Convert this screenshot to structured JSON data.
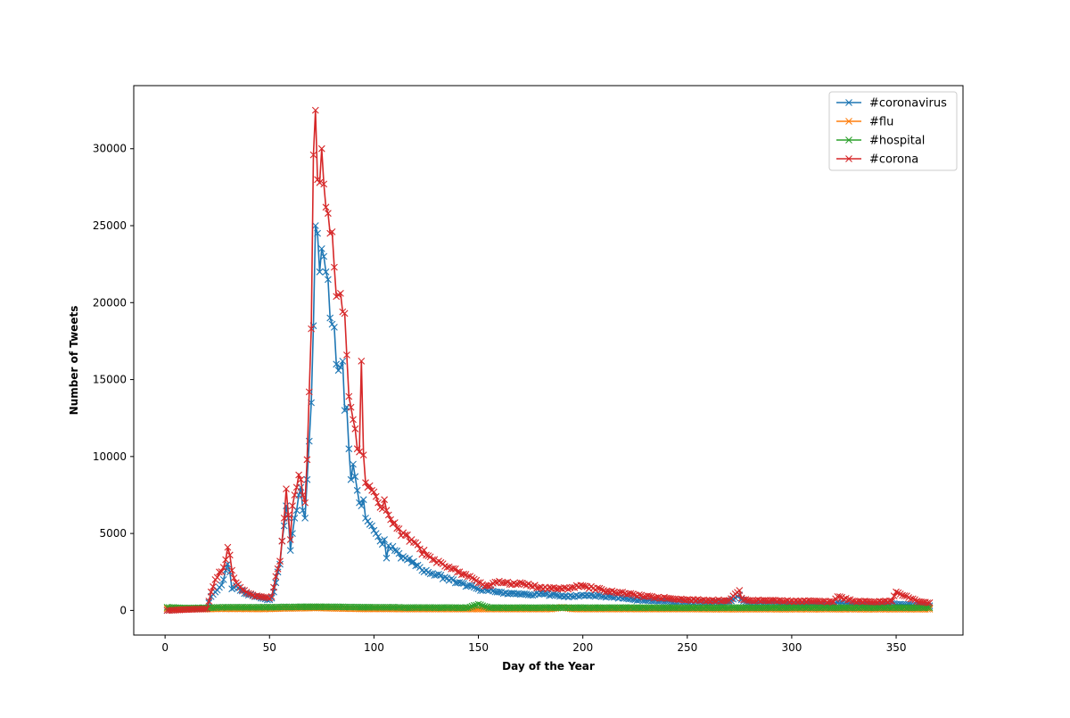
{
  "chart_data": {
    "type": "line",
    "title": "",
    "xlabel": "Day of the Year",
    "ylabel": "Number of Tweets",
    "xlim": [
      -15,
      382
    ],
    "ylim": [
      -1600,
      34100
    ],
    "x_ticks": [
      0,
      50,
      100,
      150,
      200,
      250,
      300,
      350
    ],
    "y_ticks": [
      0,
      5000,
      10000,
      15000,
      20000,
      25000,
      30000
    ],
    "marker": "x",
    "grid": false,
    "legend_position": "top-right",
    "x_key_days": [
      1,
      5,
      10,
      15,
      20,
      21,
      22,
      24,
      26,
      28,
      29,
      30,
      31,
      32,
      34,
      36,
      38,
      40,
      42,
      44,
      46,
      48,
      50,
      51,
      52,
      53,
      54,
      55,
      56,
      57,
      58,
      59,
      60,
      61,
      62,
      63,
      64,
      65,
      66,
      67,
      68,
      69,
      70,
      71,
      72,
      73,
      74,
      75,
      76,
      77,
      78,
      79,
      80,
      81,
      82,
      83,
      84,
      85,
      86,
      87,
      88,
      89,
      90,
      91,
      92,
      93,
      94,
      95,
      96,
      97,
      98,
      99,
      100,
      101,
      102,
      103,
      104,
      105,
      106,
      107,
      108,
      110,
      112,
      115,
      118,
      120,
      122,
      125,
      128,
      130,
      135,
      140,
      145,
      150,
      155,
      160,
      165,
      170,
      175,
      180,
      185,
      190,
      195,
      200,
      205,
      210,
      215,
      220,
      225,
      230,
      240,
      250,
      260,
      270,
      275,
      276,
      277,
      280,
      290,
      300,
      310,
      320,
      322,
      330,
      340,
      348,
      350,
      360,
      366
    ],
    "series": [
      {
        "name": "#coronavirus",
        "color": "#1f77b4",
        "values": [
          0,
          50,
          80,
          100,
          150,
          500,
          900,
          1200,
          1500,
          2000,
          2600,
          3000,
          2500,
          1400,
          1600,
          1300,
          1100,
          1000,
          950,
          900,
          800,
          750,
          700,
          800,
          1200,
          1800,
          2500,
          3000,
          4500,
          5500,
          6800,
          6000,
          3900,
          5000,
          6000,
          6500,
          7500,
          8000,
          6500,
          6000,
          8500,
          11000,
          13500,
          18500,
          25000,
          24500,
          22000,
          23500,
          23000,
          22000,
          21500,
          19000,
          18600,
          18400,
          16000,
          15600,
          15800,
          16200,
          13000,
          13200,
          10500,
          8500,
          9500,
          8700,
          7800,
          7000,
          6800,
          7200,
          6000,
          5800,
          5600,
          5500,
          5200,
          5000,
          4800,
          4500,
          4300,
          4600,
          3400,
          4200,
          4000,
          3900,
          3700,
          3400,
          3100,
          2900,
          2800,
          2600,
          2400,
          2300,
          2100,
          1800,
          1600,
          1400,
          1300,
          1200,
          1100,
          1050,
          1000,
          1100,
          1000,
          950,
          900,
          1000,
          950,
          900,
          850,
          800,
          700,
          650,
          600,
          550,
          500,
          550,
          1000,
          700,
          600,
          500,
          450,
          400,
          400,
          380,
          500,
          380,
          350,
          450,
          400,
          350,
          300
        ]
      },
      {
        "name": "#flu",
        "color": "#ff7f0e",
        "values": [
          120,
          110,
          100,
          100,
          90,
          90,
          90,
          100,
          110,
          110,
          100,
          110,
          100,
          100,
          110,
          100,
          100,
          100,
          100,
          90,
          100,
          100,
          100,
          110,
          110,
          120,
          120,
          120,
          130,
          130,
          140,
          130,
          130,
          130,
          140,
          140,
          140,
          150,
          150,
          140,
          150,
          150,
          160,
          160,
          170,
          160,
          160,
          150,
          150,
          150,
          140,
          140,
          140,
          130,
          130,
          130,
          130,
          120,
          120,
          120,
          120,
          110,
          110,
          110,
          110,
          100,
          100,
          100,
          100,
          100,
          100,
          100,
          100,
          100,
          100,
          100,
          100,
          100,
          100,
          100,
          100,
          90,
          90,
          90,
          90,
          90,
          90,
          90,
          90,
          90,
          90,
          90,
          90,
          90,
          90,
          90,
          90,
          90,
          90,
          90,
          90,
          200,
          90,
          90,
          90,
          90,
          90,
          90,
          90,
          90,
          90,
          90,
          80,
          80,
          80,
          80,
          80,
          80,
          80,
          80,
          80,
          80,
          80,
          80,
          80,
          80,
          80,
          80,
          80
        ]
      },
      {
        "name": "#hospital",
        "color": "#2ca02c",
        "values": [
          200,
          180,
          150,
          160,
          170,
          180,
          180,
          190,
          200,
          200,
          210,
          210,
          200,
          200,
          210,
          200,
          200,
          210,
          200,
          200,
          200,
          200,
          210,
          210,
          200,
          210,
          220,
          220,
          220,
          230,
          230,
          220,
          220,
          220,
          230,
          230,
          230,
          240,
          240,
          240,
          240,
          240,
          240,
          240,
          240,
          240,
          240,
          240,
          240,
          240,
          230,
          230,
          230,
          230,
          230,
          230,
          230,
          230,
          220,
          220,
          220,
          220,
          220,
          220,
          220,
          210,
          210,
          210,
          210,
          210,
          210,
          210,
          200,
          200,
          200,
          200,
          200,
          200,
          200,
          200,
          200,
          200,
          200,
          190,
          190,
          190,
          190,
          190,
          190,
          190,
          190,
          180,
          180,
          400,
          180,
          180,
          180,
          180,
          180,
          180,
          180,
          180,
          180,
          180,
          180,
          180,
          180,
          180,
          180,
          180,
          180,
          180,
          180,
          180,
          180,
          180,
          180,
          180,
          180,
          180,
          180,
          180,
          180,
          180,
          180,
          180,
          180,
          180,
          180
        ]
      },
      {
        "name": "#corona",
        "color": "#d62728",
        "values": [
          0,
          20,
          60,
          80,
          100,
          600,
          1200,
          2000,
          2500,
          2800,
          3300,
          4100,
          3600,
          2600,
          1800,
          1500,
          1300,
          1100,
          1000,
          950,
          900,
          850,
          800,
          900,
          1500,
          2200,
          2700,
          3200,
          4500,
          6000,
          7900,
          6200,
          4600,
          6800,
          7500,
          8000,
          8800,
          8500,
          7500,
          7000,
          9800,
          14200,
          18300,
          29600,
          32500,
          28000,
          27800,
          30000,
          27700,
          26200,
          25800,
          24500,
          24600,
          22300,
          20400,
          20500,
          20600,
          19400,
          19300,
          16600,
          13900,
          13200,
          12400,
          11800,
          10500,
          10300,
          16200,
          10100,
          8300,
          8000,
          8100,
          7800,
          7700,
          7400,
          7000,
          6700,
          6600,
          7200,
          6500,
          6200,
          5900,
          5700,
          5300,
          4900,
          4600,
          4400,
          4000,
          3600,
          3300,
          3100,
          2800,
          2500,
          2200,
          1800,
          1600,
          1900,
          1700,
          1800,
          1600,
          1500,
          1450,
          1400,
          1500,
          1600,
          1450,
          1300,
          1200,
          1100,
          1000,
          900,
          800,
          700,
          650,
          650,
          1300,
          800,
          700,
          650,
          650,
          600,
          600,
          550,
          900,
          600,
          550,
          600,
          1200,
          600,
          500
        ]
      }
    ]
  }
}
